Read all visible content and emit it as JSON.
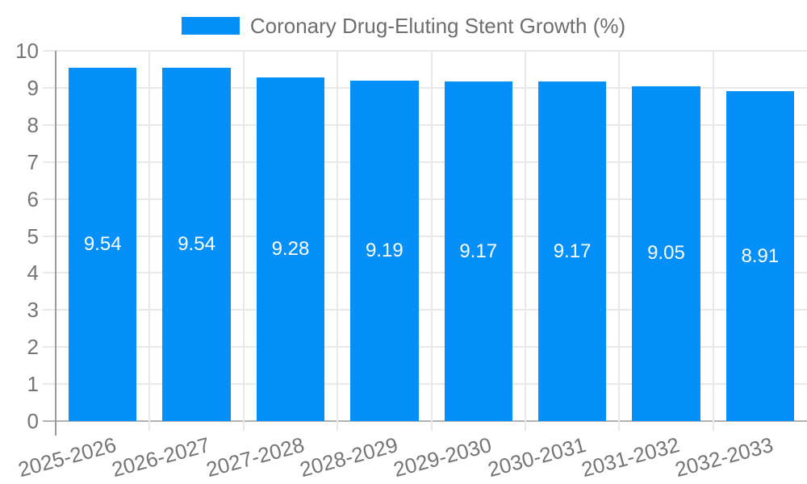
{
  "legend": {
    "label": "Coronary Drug-Eluting Stent Growth (%)"
  },
  "chart_data": {
    "type": "bar",
    "title": "Coronary Drug-Eluting Stent Growth (%)",
    "categories": [
      "2025-2026",
      "2026-2027",
      "2027-2028",
      "2028-2029",
      "2029-2030",
      "2030-2031",
      "2031-2032",
      "2032-2033"
    ],
    "values": [
      9.54,
      9.54,
      9.28,
      9.19,
      9.17,
      9.17,
      9.05,
      8.91
    ],
    "value_labels": [
      "9.54",
      "9.54",
      "9.28",
      "9.19",
      "9.17",
      "9.17",
      "9.05",
      "8.91"
    ],
    "xlabel": "",
    "ylabel": "",
    "ylim": [
      0,
      10
    ],
    "ytick_labels": [
      "0",
      "1",
      "2",
      "3",
      "4",
      "5",
      "6",
      "7",
      "8",
      "9",
      "10"
    ],
    "grid": true,
    "legend_position": "top-center",
    "colors": {
      "bar": "#0490F8",
      "grid": "#e8e8e8",
      "baseline": "#b3b3b3",
      "axis": "#9a9a9a",
      "tick_text": "#757575",
      "title_text": "#6e6e6e",
      "value_text": "#ffffff"
    }
  }
}
